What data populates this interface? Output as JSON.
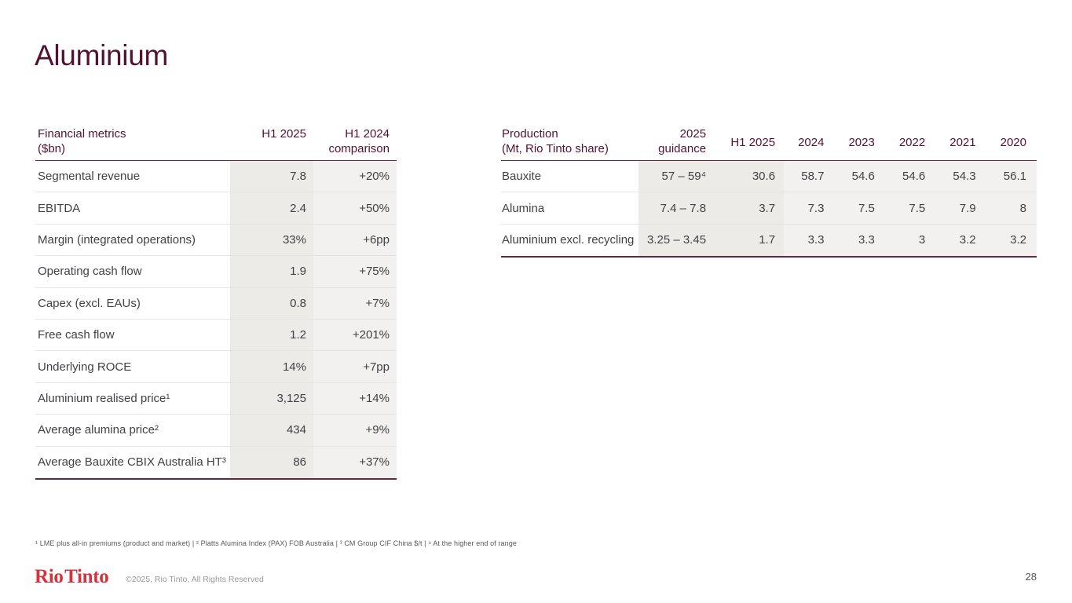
{
  "page": {
    "title": "Aluminium",
    "page_number": "28"
  },
  "colors": {
    "heading_maroon": "#531232",
    "rule_maroon": "#5f2a40",
    "row_separator": "#e6e3e0",
    "column_shade_dark": "#edebe8",
    "column_shade_light": "#f2f1ef",
    "body_text": "#414245",
    "logo_red": "#d6323b"
  },
  "financial_table": {
    "header": {
      "label_line1": "Financial metrics",
      "label_line2": "($bn)",
      "col_h1": "H1 2025",
      "col_cmp_line1": "H1 2024",
      "col_cmp_line2": "comparison"
    },
    "rows": [
      {
        "label": "Segmental revenue",
        "h1_2025": "7.8",
        "comparison": "+20%"
      },
      {
        "label": "EBITDA",
        "h1_2025": "2.4",
        "comparison": "+50%"
      },
      {
        "label": "Margin (integrated operations)",
        "h1_2025": "33%",
        "comparison": "+6pp"
      },
      {
        "label": "Operating cash flow",
        "h1_2025": "1.9",
        "comparison": "+75%"
      },
      {
        "label": "Capex (excl. EAUs)",
        "h1_2025": "0.8",
        "comparison": "+7%"
      },
      {
        "label": "Free cash flow",
        "h1_2025": "1.2",
        "comparison": "+201%"
      },
      {
        "label": "Underlying ROCE",
        "h1_2025": "14%",
        "comparison": "+7pp"
      },
      {
        "label": "Aluminium realised price¹",
        "h1_2025": "3,125",
        "comparison": "+14%"
      },
      {
        "label": "Average alumina price²",
        "h1_2025": "434",
        "comparison": "+9%"
      },
      {
        "label": "Average Bauxite CBIX Australia HT³",
        "h1_2025": "86",
        "comparison": "+37%"
      }
    ]
  },
  "production_table": {
    "header": {
      "label_line1": "Production",
      "label_line2": "(Mt, Rio Tinto share)",
      "guidance_line1": "2025",
      "guidance_line2": "guidance",
      "col_h1": "H1 2025",
      "years": [
        "2024",
        "2023",
        "2022",
        "2021",
        "2020"
      ]
    },
    "rows": [
      {
        "label": "Bauxite",
        "guidance": "57 – 59⁴",
        "h1_2025": "30.6",
        "values": [
          "58.7",
          "54.6",
          "54.6",
          "54.3",
          "56.1"
        ]
      },
      {
        "label": "Alumina",
        "guidance": "7.4 – 7.8",
        "h1_2025": "3.7",
        "values": [
          "7.3",
          "7.5",
          "7.5",
          "7.9",
          "8"
        ]
      },
      {
        "label": "Aluminium excl. recycling",
        "guidance": "3.25 – 3.45",
        "h1_2025": "1.7",
        "values": [
          "3.3",
          "3.3",
          "3",
          "3.2",
          "3.2"
        ]
      }
    ]
  },
  "footnote": "¹ LME plus all-in premiums (product and market) | ² Platts Alumina Index (PAX) FOB Australia | ³ CM Group CIF China $/t | ⁴ At the higher end of range",
  "footer": {
    "logo": "Rio Tinto",
    "copyright": "©2025, Rio Tinto, All Rights Reserved"
  }
}
